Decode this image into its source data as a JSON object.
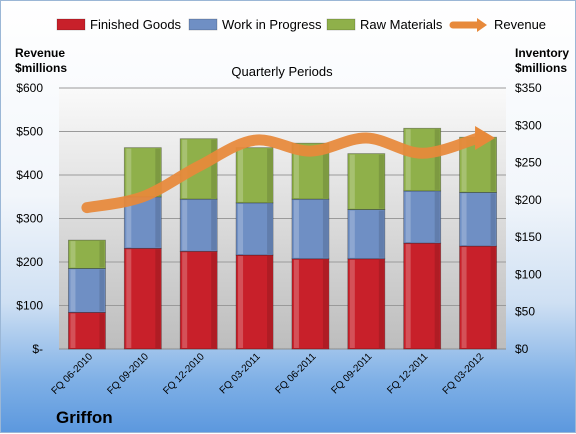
{
  "company": "Griffon",
  "chart_data": {
    "type": "bar",
    "title": "Quarterly Periods",
    "left_axis_title": [
      "Revenue",
      "$millions"
    ],
    "right_axis_title": [
      "Inventory",
      "$millions"
    ],
    "left_ticks": [
      "$-",
      "$100",
      "$200",
      "$300",
      "$400",
      "$500",
      "$600"
    ],
    "right_ticks": [
      "$0",
      "$50",
      "$100",
      "$150",
      "$200",
      "$250",
      "$300",
      "$350"
    ],
    "ylim_left": [
      0,
      600
    ],
    "ylim_right": [
      0,
      350
    ],
    "categories": [
      "FQ 06-2010",
      "FQ 09-2010",
      "FQ 12-2010",
      "FQ 03-2011",
      "FQ 06-2011",
      "FQ 09-2011",
      "FQ 12-2011",
      "FQ 03-2012"
    ],
    "series": [
      {
        "name": "Finished Goods",
        "type": "stacked-bar",
        "axis": "right",
        "color": "#c8202a",
        "values": [
          49,
          135,
          131,
          126,
          121,
          121,
          142,
          138
        ]
      },
      {
        "name": "Work in Progress",
        "type": "stacked-bar",
        "axis": "right",
        "color": "#6f8fc4",
        "values": [
          59,
          69,
          70,
          70,
          80,
          66,
          70,
          72
        ]
      },
      {
        "name": "Raw Materials",
        "type": "stacked-bar",
        "axis": "right",
        "color": "#8fb04a",
        "values": [
          38,
          66,
          81,
          74,
          75,
          75,
          84,
          74
        ]
      },
      {
        "name": "Revenue",
        "type": "line",
        "axis": "left",
        "color": "#e7893a",
        "values": [
          325,
          350,
          420,
          480,
          455,
          485,
          450,
          485
        ]
      }
    ],
    "legend_position": "top",
    "grid": true
  }
}
